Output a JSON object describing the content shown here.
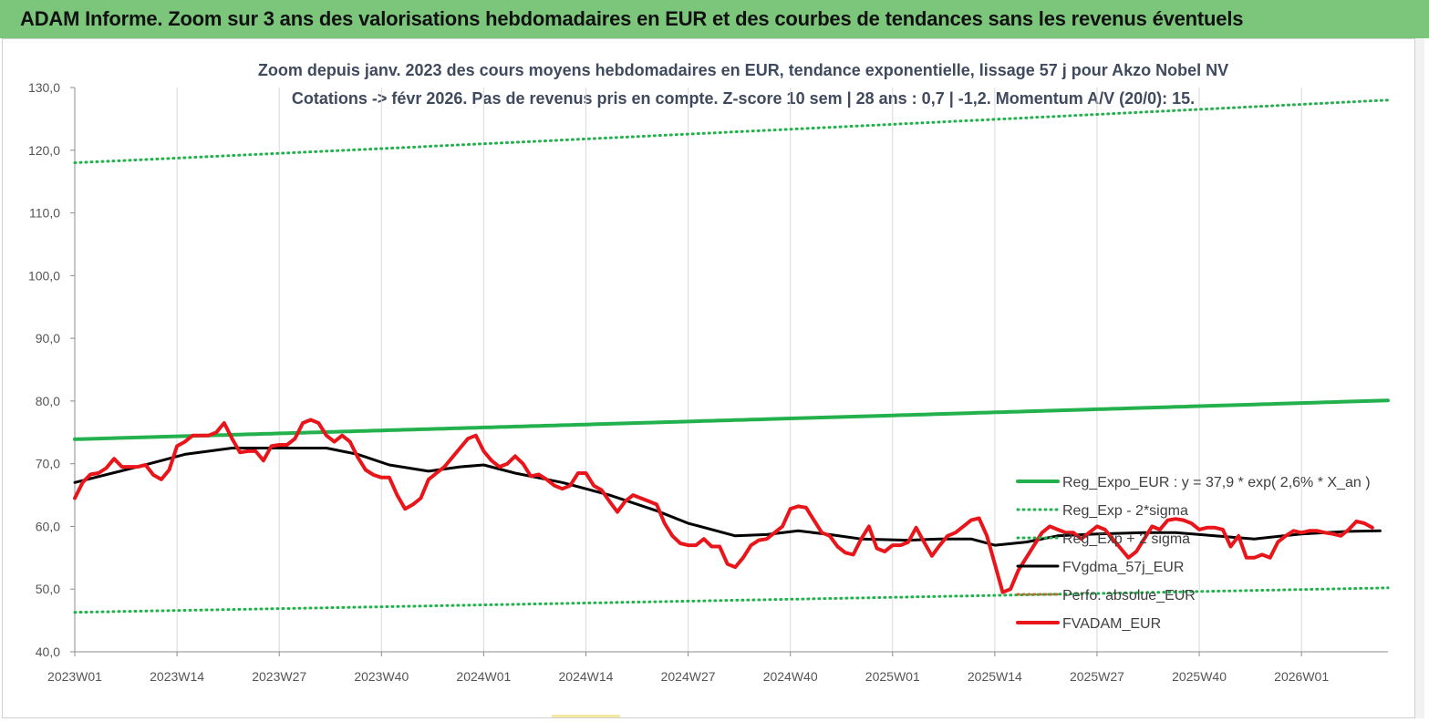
{
  "header": {
    "title": "ADAM Informe. Zoom sur 3 ans des valorisations hebdomadaires en EUR et des courbes de tendances sans les revenus éventuels",
    "banner_color": "#7bc67b"
  },
  "chart_data": {
    "type": "line",
    "title_line1": "Zoom depuis janv. 2023 des cours moyens hebdomadaires en EUR, tendance exponentielle, lissage 57 j pour Akzo Nobel NV",
    "title_line2": "Cotations -> févr 2026.  Pas de revenus pris en compte. Z-score 10 sem | 28 ans : 0,7 | -1,2. Momentum A/V (20/0): 15.",
    "xlabel": "",
    "ylabel": "",
    "ylim": [
      40,
      130
    ],
    "yticks": [
      "40,0",
      "50,0",
      "60,0",
      "70,0",
      "80,0",
      "90,0",
      "100,0",
      "110,0",
      "120,0",
      "130,0"
    ],
    "x_ticks": [
      "2023W01",
      "2023W14",
      "2023W27",
      "2023W40",
      "2024W01",
      "2024W14",
      "2024W27",
      "2024W40",
      "2025W01",
      "2025W14",
      "2025W27",
      "2025W40",
      "2026W01"
    ],
    "x_tick_week_index": [
      0,
      13,
      26,
      39,
      52,
      65,
      78,
      91,
      104,
      117,
      130,
      143,
      156
    ],
    "x_count_weeks": 167,
    "grid": "vertical",
    "legend_position": "bottom-right",
    "series": [
      {
        "name": "Reg_Expo_EUR : y = 37,9 * exp( 2,6% *  X_an )",
        "style": "solid-thick",
        "color": "#22b14c",
        "start": 73.9,
        "end": 80.1
      },
      {
        "name": "Reg_Exp - 2*sigma",
        "style": "dotted",
        "color": "#22b14c",
        "start": 46.3,
        "end": 50.2
      },
      {
        "name": "Reg_Exp + 2 sigma",
        "style": "dotted",
        "color": "#22b14c",
        "start": 118.0,
        "end": 128.0
      },
      {
        "name": "FVgdma_57j_EUR",
        "style": "solid",
        "color": "#000000",
        "points": [
          [
            0,
            67.0
          ],
          [
            8,
            69.5
          ],
          [
            14,
            71.5
          ],
          [
            20,
            72.5
          ],
          [
            27,
            72.5
          ],
          [
            32,
            72.5
          ],
          [
            36,
            71.5
          ],
          [
            40,
            69.8
          ],
          [
            45,
            68.8
          ],
          [
            49,
            69.5
          ],
          [
            52,
            69.8
          ],
          [
            56,
            68.5
          ],
          [
            62,
            67.0
          ],
          [
            68,
            65.0
          ],
          [
            74,
            62.5
          ],
          [
            78,
            60.5
          ],
          [
            84,
            58.5
          ],
          [
            88,
            58.7
          ],
          [
            92,
            59.3
          ],
          [
            96,
            58.7
          ],
          [
            100,
            58.0
          ],
          [
            106,
            57.8
          ],
          [
            110,
            58.0
          ],
          [
            114,
            58.0
          ],
          [
            117,
            57.0
          ],
          [
            121,
            57.5
          ],
          [
            125,
            58.5
          ],
          [
            130,
            58.8
          ],
          [
            136,
            59.0
          ],
          [
            140,
            59.0
          ],
          [
            145,
            58.5
          ],
          [
            150,
            58.0
          ],
          [
            156,
            58.8
          ],
          [
            162,
            59.2
          ],
          [
            166,
            59.3
          ]
        ]
      },
      {
        "name": "Perfo. absolue_EUR",
        "style": "dotted",
        "color": "#c06a30",
        "values": []
      },
      {
        "name": "FVADAM_EUR",
        "style": "solid-thick",
        "color": "#e8161b",
        "points": [
          [
            0,
            64.5
          ],
          [
            1,
            67
          ],
          [
            2,
            68.3
          ],
          [
            3,
            68.5
          ],
          [
            4,
            69.3
          ],
          [
            5,
            70.8
          ],
          [
            6,
            69.5
          ],
          [
            7,
            69.5
          ],
          [
            8,
            69.5
          ],
          [
            9,
            69.8
          ],
          [
            10,
            68.2
          ],
          [
            11,
            67.5
          ],
          [
            12,
            69
          ],
          [
            13,
            72.8
          ],
          [
            14,
            73.5
          ],
          [
            15,
            74.5
          ],
          [
            16,
            74.5
          ],
          [
            17,
            74.5
          ],
          [
            18,
            75
          ],
          [
            19,
            76.5
          ],
          [
            20,
            74
          ],
          [
            21,
            71.8
          ],
          [
            22,
            72
          ],
          [
            23,
            72
          ],
          [
            24,
            70.5
          ],
          [
            25,
            72.8
          ],
          [
            26,
            73
          ],
          [
            27,
            73
          ],
          [
            28,
            74
          ],
          [
            29,
            76.5
          ],
          [
            30,
            77
          ],
          [
            31,
            76.5
          ],
          [
            32,
            74.5
          ],
          [
            33,
            73.5
          ],
          [
            34,
            74.5
          ],
          [
            35,
            73.5
          ],
          [
            36,
            71
          ],
          [
            37,
            69
          ],
          [
            38,
            68.2
          ],
          [
            39,
            67.8
          ],
          [
            40,
            67.8
          ],
          [
            41,
            65
          ],
          [
            42,
            62.8
          ],
          [
            43,
            63.5
          ],
          [
            44,
            64.5
          ],
          [
            45,
            67.5
          ],
          [
            46,
            68.5
          ],
          [
            47,
            69.5
          ],
          [
            48,
            71
          ],
          [
            49,
            72.5
          ],
          [
            50,
            74
          ],
          [
            51,
            74.5
          ],
          [
            52,
            72
          ],
          [
            53,
            70.5
          ],
          [
            54,
            69.5
          ],
          [
            55,
            70
          ],
          [
            56,
            71.2
          ],
          [
            57,
            70
          ],
          [
            58,
            68
          ],
          [
            59,
            68.3
          ],
          [
            60,
            67.5
          ],
          [
            61,
            66.5
          ],
          [
            62,
            66
          ],
          [
            63,
            66.5
          ],
          [
            64,
            68.5
          ],
          [
            65,
            68.5
          ],
          [
            66,
            66.5
          ],
          [
            67,
            65.8
          ],
          [
            68,
            64
          ],
          [
            69,
            62.3
          ],
          [
            70,
            64
          ],
          [
            71,
            65
          ],
          [
            72,
            64.5
          ],
          [
            73,
            64
          ],
          [
            74,
            63.5
          ],
          [
            75,
            60.5
          ],
          [
            76,
            58.5
          ],
          [
            77,
            57.3
          ],
          [
            78,
            57
          ],
          [
            79,
            57
          ],
          [
            80,
            58
          ],
          [
            81,
            56.8
          ],
          [
            82,
            56.8
          ],
          [
            83,
            54
          ],
          [
            84,
            53.5
          ],
          [
            85,
            55
          ],
          [
            86,
            57
          ],
          [
            87,
            57.8
          ],
          [
            88,
            58
          ],
          [
            89,
            59
          ],
          [
            90,
            60
          ],
          [
            91,
            62.8
          ],
          [
            92,
            63.2
          ],
          [
            93,
            63
          ],
          [
            94,
            61
          ],
          [
            95,
            59
          ],
          [
            96,
            58.5
          ],
          [
            97,
            56.8
          ],
          [
            98,
            55.8
          ],
          [
            99,
            55.5
          ],
          [
            100,
            58
          ],
          [
            101,
            60
          ],
          [
            102,
            56.5
          ],
          [
            103,
            56
          ],
          [
            104,
            57
          ],
          [
            105,
            57
          ],
          [
            106,
            57.5
          ],
          [
            107,
            59.8
          ],
          [
            108,
            57.5
          ],
          [
            109,
            55.3
          ],
          [
            110,
            57
          ],
          [
            111,
            58.5
          ],
          [
            112,
            59
          ],
          [
            113,
            60
          ],
          [
            114,
            61
          ],
          [
            115,
            61.3
          ],
          [
            116,
            58.5
          ],
          [
            117,
            54
          ],
          [
            118,
            49.5
          ],
          [
            119,
            50
          ],
          [
            120,
            53
          ],
          [
            121,
            55
          ],
          [
            122,
            57
          ],
          [
            123,
            59
          ],
          [
            124,
            60
          ],
          [
            125,
            59.5
          ],
          [
            126,
            59
          ],
          [
            127,
            59
          ],
          [
            128,
            58
          ],
          [
            129,
            59
          ],
          [
            130,
            60
          ],
          [
            131,
            59.5
          ],
          [
            132,
            58
          ],
          [
            133,
            56.5
          ],
          [
            134,
            55
          ],
          [
            135,
            56
          ],
          [
            136,
            58
          ],
          [
            137,
            60
          ],
          [
            138,
            59.5
          ],
          [
            139,
            61
          ],
          [
            140,
            61.2
          ],
          [
            141,
            61
          ],
          [
            142,
            60.5
          ],
          [
            143,
            59.5
          ],
          [
            144,
            59.8
          ],
          [
            145,
            59.8
          ],
          [
            146,
            59.5
          ],
          [
            147,
            56.8
          ],
          [
            148,
            58.5
          ],
          [
            149,
            55
          ],
          [
            150,
            55
          ],
          [
            151,
            55.5
          ],
          [
            152,
            55
          ],
          [
            153,
            57.5
          ],
          [
            154,
            58.5
          ],
          [
            155,
            59.3
          ],
          [
            156,
            59
          ],
          [
            157,
            59.3
          ],
          [
            158,
            59.3
          ],
          [
            159,
            59
          ],
          [
            160,
            58.8
          ],
          [
            161,
            58.5
          ],
          [
            162,
            59.5
          ],
          [
            163,
            60.8
          ],
          [
            164,
            60.5
          ],
          [
            165,
            59.8
          ]
        ]
      }
    ]
  }
}
